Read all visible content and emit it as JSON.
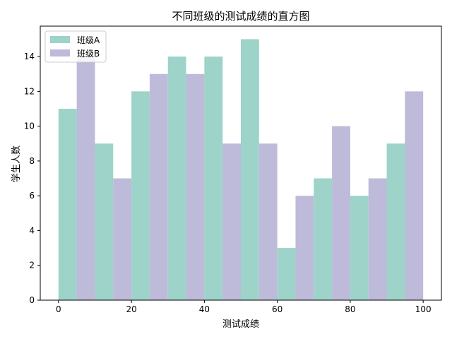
{
  "chart_data": {
    "type": "bar",
    "title": "不同班级的测试成绩的直方图",
    "xlabel": "测试成绩",
    "ylabel": "学生人数",
    "xlim": [
      -5,
      105
    ],
    "ylim": [
      0,
      15.75
    ],
    "xticks": [
      0,
      20,
      40,
      60,
      80,
      100
    ],
    "yticks": [
      0,
      2,
      4,
      6,
      8,
      10,
      12,
      14
    ],
    "bin_edges": [
      0,
      10,
      20,
      30,
      40,
      50,
      60,
      70,
      80,
      90,
      100
    ],
    "grid": false,
    "legend_position": "top-left",
    "series": [
      {
        "name": "班级A",
        "color": "#9dd3c8",
        "values": [
          11,
          9,
          12,
          14,
          14,
          15,
          3,
          7,
          6,
          9
        ]
      },
      {
        "name": "班级B",
        "color": "#bebad9",
        "values": [
          14,
          7,
          13,
          13,
          9,
          9,
          6,
          10,
          7,
          12
        ]
      }
    ]
  }
}
